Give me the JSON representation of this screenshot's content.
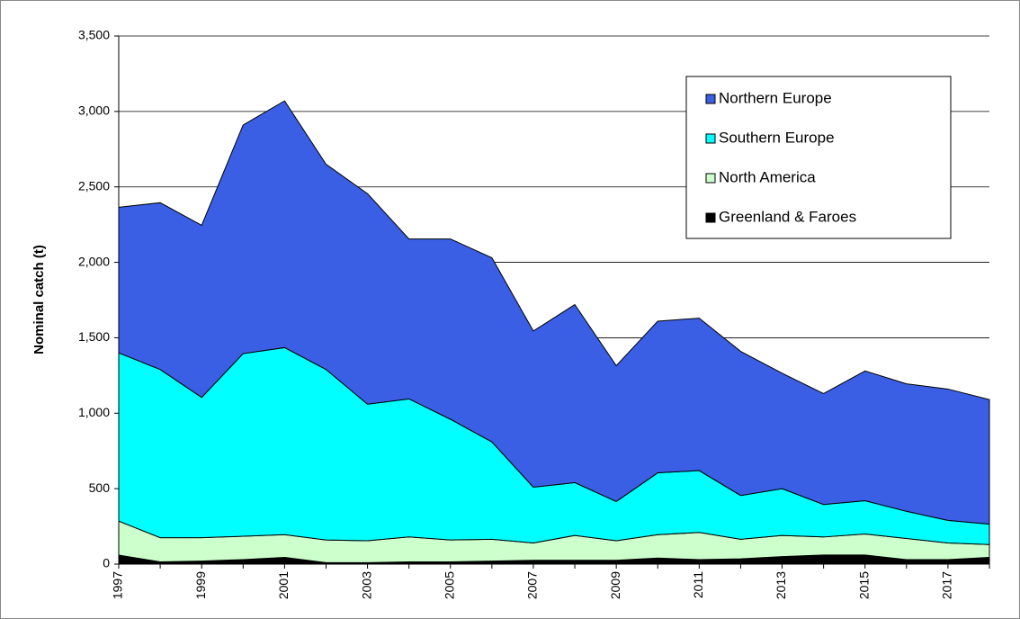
{
  "chart_data": {
    "type": "stacked_area",
    "y_label": "Nominal catch (t)",
    "categories": [
      "1997",
      null,
      "1999",
      null,
      "2001",
      null,
      "2003",
      null,
      "2005",
      null,
      "2007",
      null,
      "2009",
      null,
      "2011",
      null,
      "2013",
      null,
      "2015",
      null,
      "2017",
      null
    ],
    "series": [
      {
        "name": "Northern Europe",
        "color": "#3a5fe5",
        "values": [
          965,
          1105,
          1140,
          1515,
          1635,
          1360,
          1395,
          1060,
          1195,
          1220,
          1035,
          1180,
          900,
          1005,
          1010,
          955,
          765,
          735,
          860,
          845,
          870,
          825
        ]
      },
      {
        "name": "Southern Europe",
        "color": "#00ffff",
        "values": [
          1115,
          1115,
          930,
          1210,
          1240,
          1130,
          905,
          915,
          800,
          645,
          370,
          350,
          260,
          410,
          410,
          290,
          310,
          215,
          220,
          180,
          150,
          135
        ]
      },
      {
        "name": "North America",
        "color": "#ccffcc",
        "values": [
          225,
          160,
          155,
          155,
          150,
          150,
          145,
          165,
          145,
          145,
          115,
          165,
          130,
          155,
          180,
          130,
          140,
          120,
          140,
          140,
          110,
          85
        ]
      },
      {
        "name": "Greenland & Faroes",
        "color": "#000000",
        "values": [
          60,
          15,
          20,
          30,
          45,
          10,
          10,
          15,
          15,
          20,
          25,
          25,
          25,
          40,
          30,
          35,
          50,
          60,
          60,
          30,
          30,
          45
        ]
      }
    ],
    "ylim": [
      0,
      3500
    ],
    "yticks": [
      0,
      500,
      {
        "value": 1000,
        "label": "1,000"
      },
      {
        "value": 1500,
        "label": "1,500"
      },
      {
        "value": 2000,
        "label": "2,000"
      },
      {
        "value": 2500,
        "label": "2,500"
      },
      {
        "value": 3000,
        "label": "3,000"
      },
      {
        "value": 3500,
        "label": "3,500"
      }
    ],
    "grid": true,
    "legend": "upper right"
  }
}
